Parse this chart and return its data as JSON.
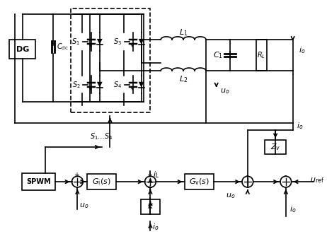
{
  "bg_color": "#ffffff",
  "line_color": "#000000",
  "figsize": [
    4.62,
    3.31
  ],
  "dpi": 100
}
